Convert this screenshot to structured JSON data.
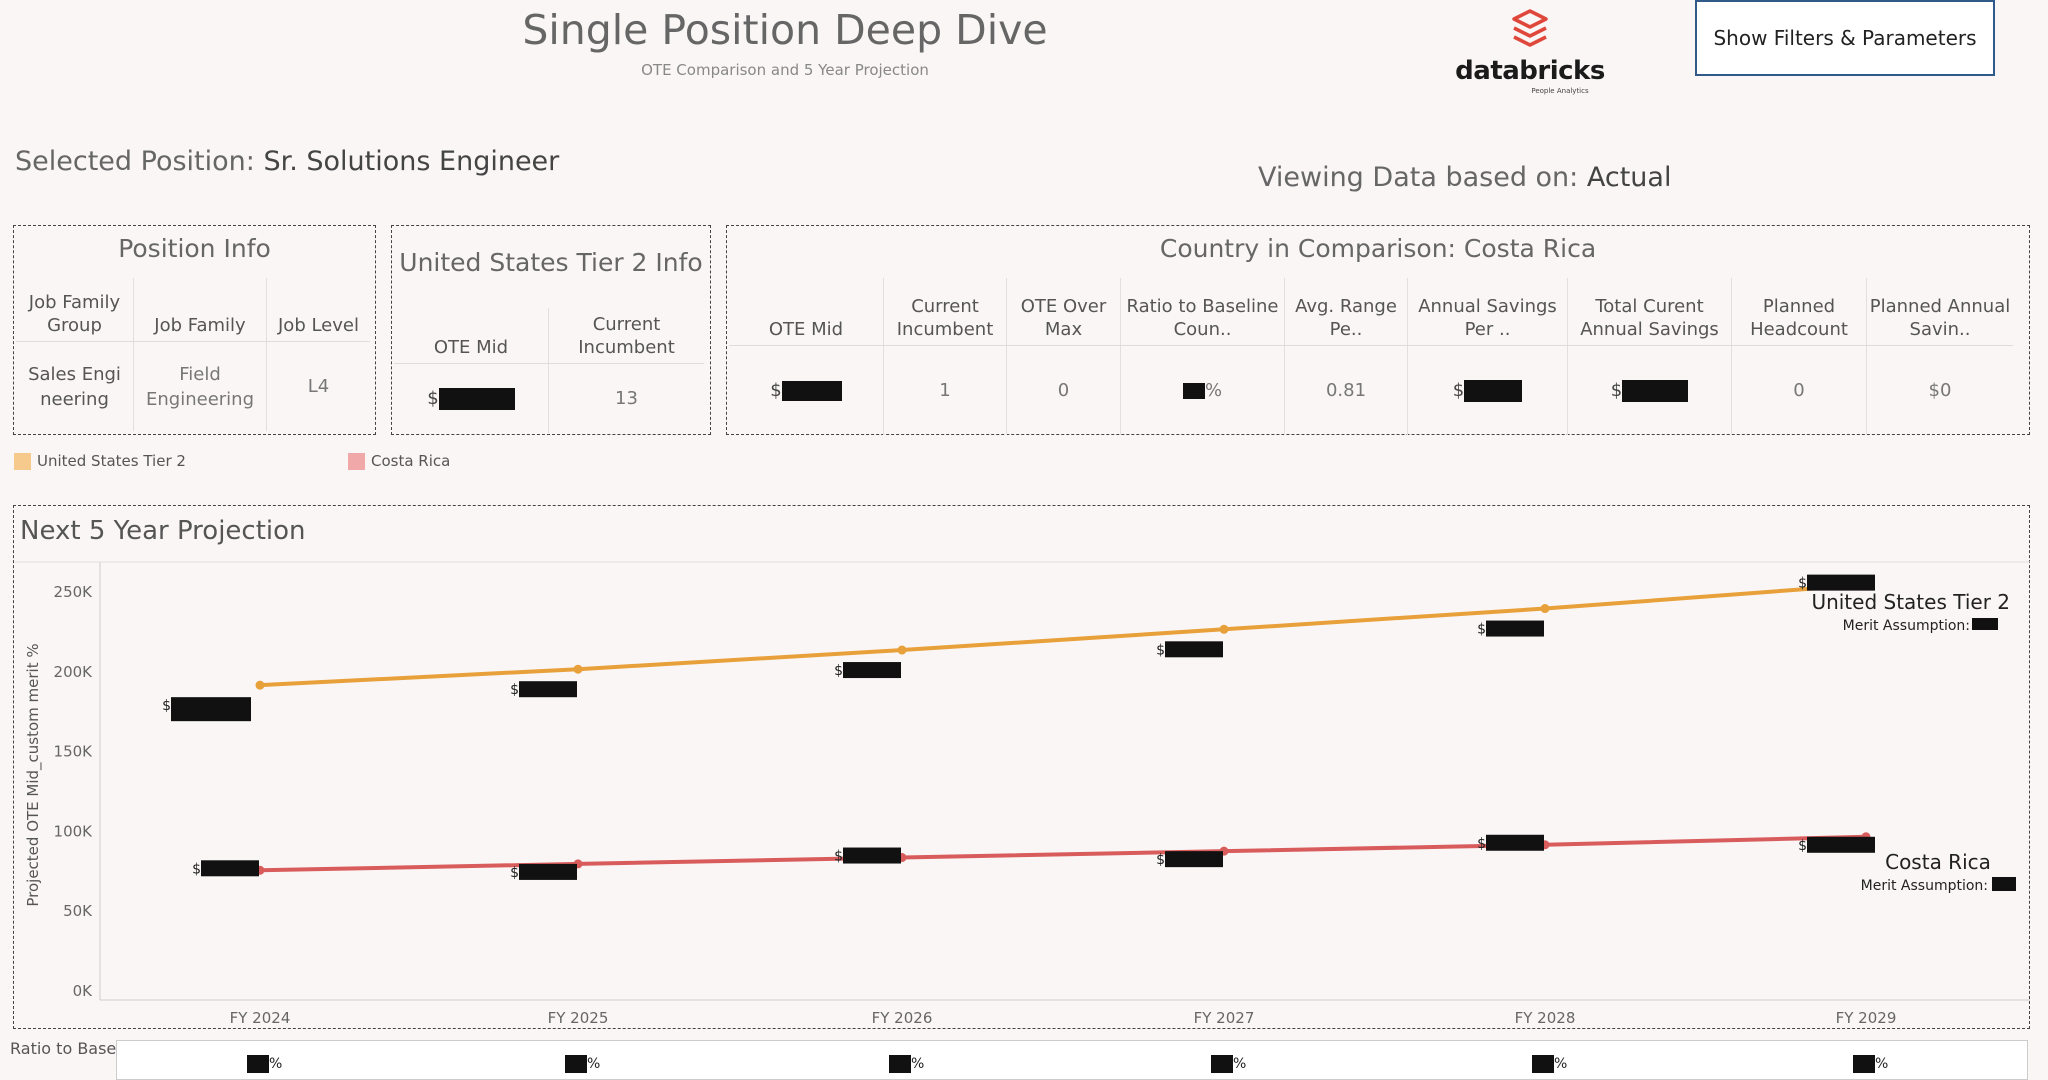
{
  "header": {
    "title": "Single Position Deep Dive",
    "subtitle": "OTE Comparison and 5 Year Projection",
    "logo_text": "databricks",
    "logo_tagline": "People Analytics",
    "filters_button": "Show Filters & Parameters"
  },
  "selection": {
    "selected_label": "Selected Position:",
    "selected_value": "Sr. Solutions Engineer",
    "viewing_label": "Viewing Data based on:",
    "viewing_value": "Actual"
  },
  "position_info": {
    "title": "Position Info",
    "headers": [
      "Job Family Group",
      "Job Family",
      "Job Level"
    ],
    "values": [
      "Sales Engi neering",
      "Field Engineering",
      "L4"
    ]
  },
  "us_info": {
    "title": "United States Tier 2 Info",
    "headers": [
      "OTE Mid",
      "Current Incumbent"
    ],
    "values": [
      "$",
      "13"
    ]
  },
  "comparison": {
    "title": "Country in Comparison: Costa Rica",
    "headers": [
      "OTE Mid",
      "Current Incumbent",
      "OTE Over Max",
      "Ratio to Baseline Coun..",
      "Avg. Range Pe..",
      "Annual Savings Per ..",
      "Total Curent Annual Savings",
      "Planned Headcount",
      "Planned Annual Savin.."
    ],
    "values": [
      "$",
      "1",
      "0",
      "%",
      "0.81",
      "$",
      "$",
      "0",
      "$0"
    ]
  },
  "legend": {
    "items": [
      {
        "label": "United States Tier 2",
        "color": "#f6c98c"
      },
      {
        "label": "Costa Rica",
        "color": "#f0a8a8"
      }
    ]
  },
  "chart": {
    "title": "Next 5 Year Projection",
    "ylabel": "Projected OTE Mid_custom merit %",
    "series_labels": [
      {
        "name": "United States Tier 2",
        "note": "Merit Assumption:"
      },
      {
        "name": "Costa Rica",
        "note": "Merit Assumption:"
      }
    ],
    "ratio_label": "Ratio to Baseline"
  },
  "chart_data": {
    "type": "line",
    "title": "Next 5 Year Projection",
    "xlabel": "",
    "ylabel": "Projected OTE Mid_custom merit %",
    "categories": [
      "FY 2024",
      "FY 2025",
      "FY 2026",
      "FY 2027",
      "FY 2028",
      "FY 2029"
    ],
    "ylim": [
      0,
      265000
    ],
    "yticks": [
      0,
      50000,
      100000,
      150000,
      200000,
      250000
    ],
    "ytick_labels": [
      "0K",
      "50K",
      "100K",
      "150K",
      "200K",
      "250K"
    ],
    "grid": false,
    "legend": "top-left",
    "series": [
      {
        "name": "United States Tier 2",
        "color": "#e8a03a",
        "values": [
          191000,
          201000,
          213000,
          226000,
          239000,
          254000
        ]
      },
      {
        "name": "Costa Rica",
        "color": "#d95c5c",
        "values": [
          75000,
          79000,
          83000,
          87000,
          91000,
          96000
        ]
      }
    ],
    "data_labels": [
      "$",
      "$",
      "$",
      "$",
      "$",
      "$"
    ],
    "ratio_labels": [
      "%",
      "%",
      "%",
      "%",
      "%",
      "%"
    ]
  }
}
